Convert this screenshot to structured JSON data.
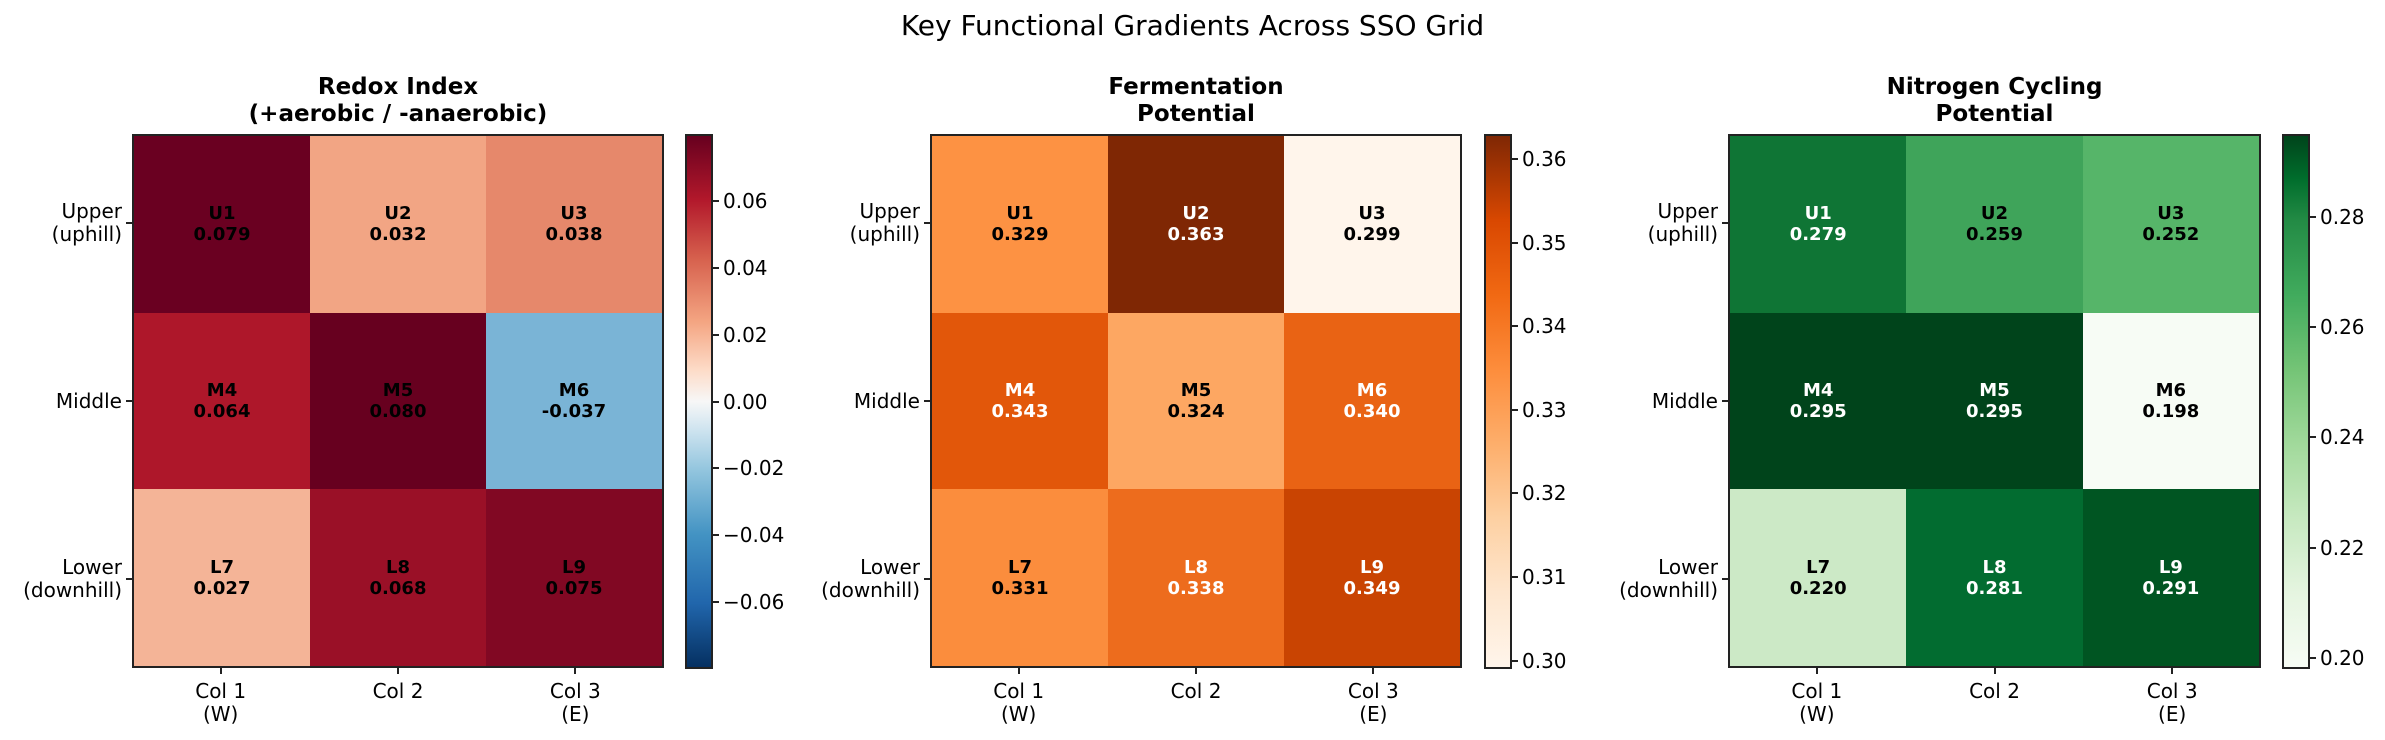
{
  "title": "Key Functional Gradients Across SSO Grid",
  "row_labels": [
    "Upper\n(uphill)",
    "Middle",
    "Lower\n(downhill)"
  ],
  "col_labels": [
    "Col 1\n(W)",
    "Col 2",
    "Col 3\n(E)"
  ],
  "panels": [
    {
      "title": "Redox Index\n(+aerobic / -anaerobic)",
      "cmap": "RdBu_r",
      "cells": [
        {
          "id": "U1",
          "value": "0.079",
          "bg": "#6a0021",
          "fg": "#000000"
        },
        {
          "id": "U2",
          "value": "0.032",
          "bg": "#f2a584",
          "fg": "#000000"
        },
        {
          "id": "U3",
          "value": "0.038",
          "bg": "#e6886b",
          "fg": "#000000"
        },
        {
          "id": "M4",
          "value": "0.064",
          "bg": "#ae172a",
          "fg": "#000000"
        },
        {
          "id": "M5",
          "value": "0.080",
          "bg": "#67001f",
          "fg": "#000000"
        },
        {
          "id": "M6",
          "value": "-0.037",
          "bg": "#7ab4d6",
          "fg": "#000000"
        },
        {
          "id": "L7",
          "value": "0.027",
          "bg": "#f4b497",
          "fg": "#000000"
        },
        {
          "id": "L8",
          "value": "0.068",
          "bg": "#9a1027",
          "fg": "#000000"
        },
        {
          "id": "L9",
          "value": "0.075",
          "bg": "#810823",
          "fg": "#000000"
        }
      ],
      "colorbar": {
        "gradient": "linear-gradient(to top, #053061 0%, #2166ac 12%, #4393c3 25%, #92c5de 37%, #d1e5f0 45%, #f7f7f7 50%, #fddbc7 56%, #f4a582 65%, #d6604d 77%, #b2182b 88%, #67001f 100%)",
        "vmin": -0.08,
        "vmax": 0.08,
        "ticks": [
          "0.06",
          "0.04",
          "0.02",
          "0.00",
          "−0.02",
          "−0.04",
          "−0.06"
        ],
        "tick_values": [
          0.06,
          0.04,
          0.02,
          0.0,
          -0.02,
          -0.04,
          -0.06
        ]
      }
    },
    {
      "title": "Fermentation\nPotential",
      "cmap": "Oranges",
      "cells": [
        {
          "id": "U1",
          "value": "0.329",
          "bg": "#fd9243",
          "fg": "#000000"
        },
        {
          "id": "U2",
          "value": "0.363",
          "bg": "#7f2704",
          "fg": "#ffffff"
        },
        {
          "id": "U3",
          "value": "0.299",
          "bg": "#fff5eb",
          "fg": "#000000"
        },
        {
          "id": "M4",
          "value": "0.343",
          "bg": "#e2570a",
          "fg": "#ffffff"
        },
        {
          "id": "M5",
          "value": "0.324",
          "bg": "#fda762",
          "fg": "#000000"
        },
        {
          "id": "M6",
          "value": "0.340",
          "bg": "#e96314",
          "fg": "#ffffff"
        },
        {
          "id": "L7",
          "value": "0.331",
          "bg": "#fb8d3d",
          "fg": "#000000"
        },
        {
          "id": "L8",
          "value": "0.338",
          "bg": "#ed6c1d",
          "fg": "#ffffff"
        },
        {
          "id": "L9",
          "value": "0.349",
          "bg": "#c94402",
          "fg": "#ffffff"
        }
      ],
      "colorbar": {
        "gradient": "linear-gradient(to top, #fff5eb 0%, #fee6ce 14%, #fdd0a2 28%, #fdae6b 42%, #fd8d3c 56%, #f16913 70%, #d94801 84%, #7f2704 100%)",
        "vmin": 0.299,
        "vmax": 0.363,
        "ticks": [
          "0.36",
          "0.35",
          "0.34",
          "0.33",
          "0.32",
          "0.31",
          "0.30"
        ],
        "tick_values": [
          0.36,
          0.35,
          0.34,
          0.33,
          0.32,
          0.31,
          0.3
        ]
      }
    },
    {
      "title": "Nitrogen Cycling\nPotential",
      "cmap": "Greens",
      "cells": [
        {
          "id": "U1",
          "value": "0.279",
          "bg": "#0f7535",
          "fg": "#ffffff"
        },
        {
          "id": "U2",
          "value": "0.259",
          "bg": "#3fa45a",
          "fg": "#000000"
        },
        {
          "id": "U3",
          "value": "0.252",
          "bg": "#56b569",
          "fg": "#000000"
        },
        {
          "id": "M4",
          "value": "0.295",
          "bg": "#00441b",
          "fg": "#ffffff"
        },
        {
          "id": "M5",
          "value": "0.295",
          "bg": "#00441b",
          "fg": "#ffffff"
        },
        {
          "id": "M6",
          "value": "0.198",
          "bg": "#f7fcf5",
          "fg": "#000000"
        },
        {
          "id": "L7",
          "value": "0.220",
          "bg": "#cce9c6",
          "fg": "#000000"
        },
        {
          "id": "L8",
          "value": "0.281",
          "bg": "#026c30",
          "fg": "#ffffff"
        },
        {
          "id": "L9",
          "value": "0.291",
          "bg": "#005522",
          "fg": "#ffffff"
        }
      ],
      "colorbar": {
        "gradient": "linear-gradient(to top, #f7fcf5 0%, #e5f5e0 14%, #c7e9c0 28%, #a1d99b 42%, #74c476 56%, #41ab5d 70%, #238b45 84%, #006d2c 92%, #00441b 100%)",
        "vmin": 0.198,
        "vmax": 0.295,
        "ticks": [
          "0.28",
          "0.26",
          "0.24",
          "0.22",
          "0.20"
        ],
        "tick_values": [
          0.28,
          0.26,
          0.24,
          0.22,
          0.2
        ]
      }
    }
  ],
  "chart_data": [
    {
      "type": "heatmap",
      "title": "Redox Index (+aerobic / -anaerobic)",
      "suptitle": "Key Functional Gradients Across SSO Grid",
      "x": [
        "Col 1 (W)",
        "Col 2",
        "Col 3 (E)"
      ],
      "y": [
        "Upper (uphill)",
        "Middle",
        "Lower (downhill)"
      ],
      "labels": [
        [
          "U1",
          "U2",
          "U3"
        ],
        [
          "M4",
          "M5",
          "M6"
        ],
        [
          "L7",
          "L8",
          "L9"
        ]
      ],
      "values": [
        [
          0.079,
          0.032,
          0.038
        ],
        [
          0.064,
          0.08,
          -0.037
        ],
        [
          0.027,
          0.068,
          0.075
        ]
      ],
      "colormap": "RdBu_r",
      "colorbar_range": [
        -0.08,
        0.08
      ],
      "colorbar_ticks": [
        -0.06,
        -0.04,
        -0.02,
        0.0,
        0.02,
        0.04,
        0.06
      ]
    },
    {
      "type": "heatmap",
      "title": "Fermentation Potential",
      "x": [
        "Col 1 (W)",
        "Col 2",
        "Col 3 (E)"
      ],
      "y": [
        "Upper (uphill)",
        "Middle",
        "Lower (downhill)"
      ],
      "labels": [
        [
          "U1",
          "U2",
          "U3"
        ],
        [
          "M4",
          "M5",
          "M6"
        ],
        [
          "L7",
          "L8",
          "L9"
        ]
      ],
      "values": [
        [
          0.329,
          0.363,
          0.299
        ],
        [
          0.343,
          0.324,
          0.34
        ],
        [
          0.331,
          0.338,
          0.349
        ]
      ],
      "colormap": "Oranges",
      "colorbar_range": [
        0.299,
        0.363
      ],
      "colorbar_ticks": [
        0.3,
        0.31,
        0.32,
        0.33,
        0.34,
        0.35,
        0.36
      ]
    },
    {
      "type": "heatmap",
      "title": "Nitrogen Cycling Potential",
      "x": [
        "Col 1 (W)",
        "Col 2",
        "Col 3 (E)"
      ],
      "y": [
        "Upper (uphill)",
        "Middle",
        "Lower (downhill)"
      ],
      "labels": [
        [
          "U1",
          "U2",
          "U3"
        ],
        [
          "M4",
          "M5",
          "M6"
        ],
        [
          "L7",
          "L8",
          "L9"
        ]
      ],
      "values": [
        [
          0.279,
          0.259,
          0.252
        ],
        [
          0.295,
          0.295,
          0.198
        ],
        [
          0.22,
          0.281,
          0.291
        ]
      ],
      "colormap": "Greens",
      "colorbar_range": [
        0.198,
        0.295
      ],
      "colorbar_ticks": [
        0.2,
        0.22,
        0.24,
        0.26,
        0.28
      ]
    }
  ]
}
